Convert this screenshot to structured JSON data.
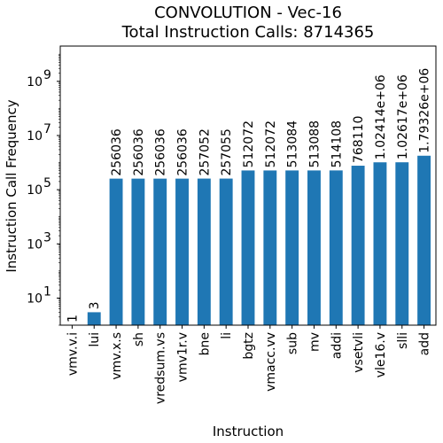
{
  "chart_data": {
    "type": "bar",
    "title": "CONVOLUTION - Vec-16",
    "subtitle": "Total Instruction Calls: 8714365",
    "xlabel": "Instruction",
    "ylabel": "Instruction Call Frequency",
    "yscale": "log",
    "ylim": [
      1,
      20000000000
    ],
    "grid": false,
    "y_ticks": [
      {
        "value": 10,
        "label": "10",
        "exp": "1"
      },
      {
        "value": 1000,
        "label": "10",
        "exp": "3"
      },
      {
        "value": 100000,
        "label": "10",
        "exp": "5"
      },
      {
        "value": 10000000,
        "label": "10",
        "exp": "7"
      },
      {
        "value": 1000000000,
        "label": "10",
        "exp": "9"
      }
    ],
    "categories": [
      "vmv.v.i",
      "lui",
      "vmv.x.s",
      "sh",
      "vredsum.vs",
      "vmv1r.v",
      "bne",
      "li",
      "bgtz",
      "vmacc.vv",
      "sub",
      "mv",
      "addi",
      "vsetvli",
      "vle16.v",
      "slli",
      "add"
    ],
    "values": [
      1,
      3,
      256036,
      256036,
      256036,
      256036,
      257052,
      257055,
      512072,
      512072,
      513084,
      513088,
      514108,
      768110,
      1024140,
      1026170,
      1793260
    ],
    "value_labels": [
      "1",
      "3",
      "256036",
      "256036",
      "256036",
      "256036",
      "257052",
      "257055",
      "512072",
      "512072",
      "513084",
      "513088",
      "514108",
      "768110",
      "1.02414e+06",
      "1.02617e+06",
      "1.79326e+06"
    ],
    "bar_color": "#1f77b4"
  }
}
